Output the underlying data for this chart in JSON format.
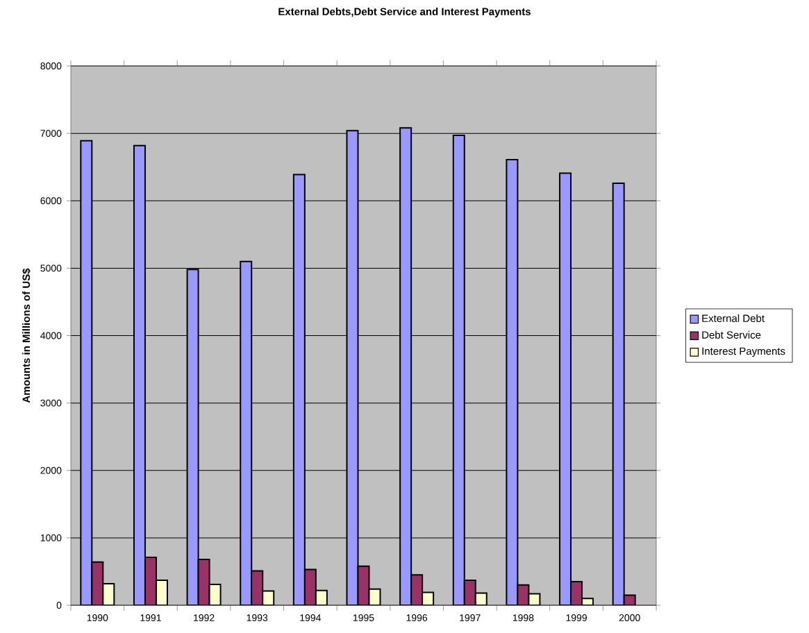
{
  "chart_data": {
    "type": "bar",
    "title": "External Debts,Debt Service and Interest Payments",
    "ylabel": "Amounts in Millions of US$",
    "categories": [
      "1990",
      "1991",
      "1992",
      "1993",
      "1994",
      "1995",
      "1996",
      "1997",
      "1998",
      "1999",
      "2000"
    ],
    "series": [
      {
        "name": "External Debt",
        "color": "#9999ff",
        "values": [
          6890,
          6820,
          4980,
          5100,
          6390,
          7040,
          7080,
          6970,
          6610,
          6410,
          6260
        ]
      },
      {
        "name": "Debt Service",
        "color": "#993366",
        "values": [
          640,
          710,
          680,
          510,
          530,
          580,
          450,
          370,
          300,
          350,
          150
        ]
      },
      {
        "name": "Interest Payments",
        "color": "#ffffcc",
        "values": [
          320,
          370,
          310,
          210,
          220,
          240,
          190,
          180,
          170,
          100,
          null
        ]
      }
    ],
    "ylim": [
      0,
      8000
    ],
    "yticks": [
      0,
      1000,
      2000,
      3000,
      4000,
      5000,
      6000,
      7000,
      8000
    ],
    "grid": "y",
    "legend": "right"
  }
}
